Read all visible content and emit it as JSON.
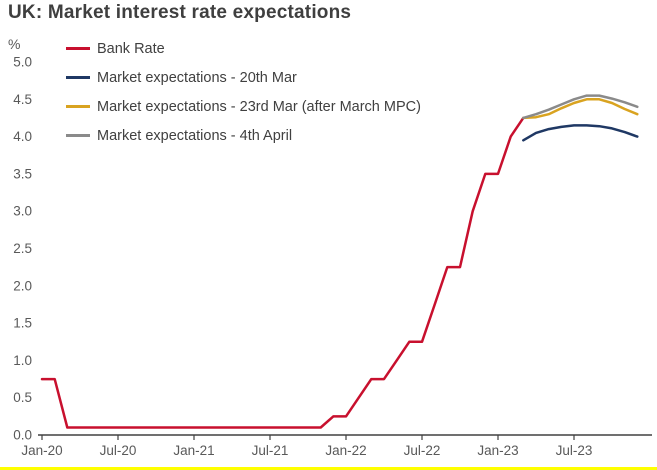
{
  "page": {
    "title": "UK: Market interest rate expectations"
  },
  "colors": {
    "axis_line": "#404040",
    "tick_text": "#595959",
    "title_text": "#3f3f3f",
    "accent_bottom": "#ffff00"
  },
  "chart_data": {
    "type": "line",
    "title": "UK: Market interest rate expectations",
    "xlabel": "",
    "ylabel": "%",
    "ylim": [
      0,
      5
    ],
    "y_tick_step": 0.5,
    "y_ticks": [
      "0.0",
      "0.5",
      "1.0",
      "1.5",
      "2.0",
      "2.5",
      "3.0",
      "3.5",
      "4.0",
      "4.5",
      "5.0"
    ],
    "x_range_months": [
      0,
      48
    ],
    "x_ticks": [
      {
        "label": "Jan-20",
        "month": 0
      },
      {
        "label": "Jul-20",
        "month": 6
      },
      {
        "label": "Jan-21",
        "month": 12
      },
      {
        "label": "Jul-21",
        "month": 18
      },
      {
        "label": "Jan-22",
        "month": 24
      },
      {
        "label": "Jul-22",
        "month": 30
      },
      {
        "label": "Jan-23",
        "month": 36
      },
      {
        "label": "Jul-23",
        "month": 42
      }
    ],
    "grid": false,
    "legend_position": "top-left",
    "series": [
      {
        "name": "Bank Rate",
        "color": "#c8102e",
        "points": [
          [
            0,
            0.75
          ],
          [
            1,
            0.75
          ],
          [
            2,
            0.1
          ],
          [
            3,
            0.1
          ],
          [
            4,
            0.1
          ],
          [
            5,
            0.1
          ],
          [
            6,
            0.1
          ],
          [
            7,
            0.1
          ],
          [
            8,
            0.1
          ],
          [
            9,
            0.1
          ],
          [
            10,
            0.1
          ],
          [
            11,
            0.1
          ],
          [
            12,
            0.1
          ],
          [
            13,
            0.1
          ],
          [
            14,
            0.1
          ],
          [
            15,
            0.1
          ],
          [
            16,
            0.1
          ],
          [
            17,
            0.1
          ],
          [
            18,
            0.1
          ],
          [
            19,
            0.1
          ],
          [
            20,
            0.1
          ],
          [
            21,
            0.1
          ],
          [
            22,
            0.1
          ],
          [
            23,
            0.25
          ],
          [
            24,
            0.25
          ],
          [
            25,
            0.5
          ],
          [
            26,
            0.75
          ],
          [
            27,
            0.75
          ],
          [
            28,
            1.0
          ],
          [
            29,
            1.25
          ],
          [
            30,
            1.25
          ],
          [
            31,
            1.75
          ],
          [
            32,
            2.25
          ],
          [
            33,
            2.25
          ],
          [
            34,
            3.0
          ],
          [
            35,
            3.5
          ],
          [
            36,
            3.5
          ],
          [
            37,
            4.0
          ],
          [
            38,
            4.25
          ]
        ]
      },
      {
        "name": "Market expectations - 20th Mar",
        "color": "#1f3864",
        "points": [
          [
            38,
            3.95
          ],
          [
            39,
            4.05
          ],
          [
            40,
            4.1
          ],
          [
            41,
            4.13
          ],
          [
            42,
            4.15
          ],
          [
            43,
            4.15
          ],
          [
            44,
            4.14
          ],
          [
            45,
            4.11
          ],
          [
            46,
            4.06
          ],
          [
            47,
            4.0
          ]
        ]
      },
      {
        "name": "Market expectations - 23rd Mar (after March MPC)",
        "color": "#d9a320",
        "points": [
          [
            38,
            4.25
          ],
          [
            39,
            4.26
          ],
          [
            40,
            4.3
          ],
          [
            41,
            4.38
          ],
          [
            42,
            4.45
          ],
          [
            43,
            4.5
          ],
          [
            44,
            4.5
          ],
          [
            45,
            4.45
          ],
          [
            46,
            4.37
          ],
          [
            47,
            4.3
          ]
        ]
      },
      {
        "name": "Market expectations - 4th April",
        "color": "#8a8a8a",
        "points": [
          [
            38,
            4.25
          ],
          [
            39,
            4.3
          ],
          [
            40,
            4.36
          ],
          [
            41,
            4.43
          ],
          [
            42,
            4.5
          ],
          [
            43,
            4.55
          ],
          [
            44,
            4.55
          ],
          [
            45,
            4.51
          ],
          [
            46,
            4.46
          ],
          [
            47,
            4.4
          ]
        ]
      }
    ]
  }
}
